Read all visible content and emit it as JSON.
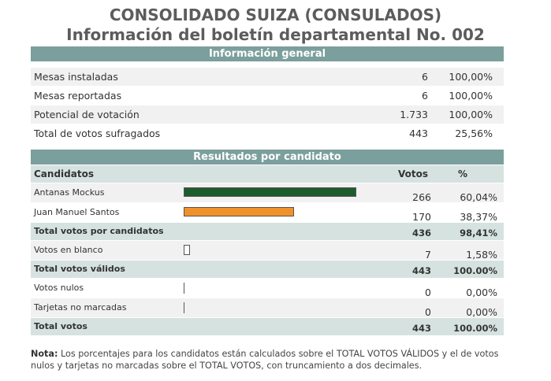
{
  "header": {
    "title_line1": "CONSOLIDADO SUIZA (CONSULADOS)",
    "title_line2": "Información del boletín departamental No. 002"
  },
  "general": {
    "section_title": "Información general",
    "rows": [
      {
        "label": "Mesas instaladas",
        "value": "6",
        "percent": "100,00%"
      },
      {
        "label": "Mesas reportadas",
        "value": "6",
        "percent": "100,00%"
      },
      {
        "label": "Potencial de votación",
        "value": "1.733",
        "percent": "100,00%"
      },
      {
        "label": "Total de votos sufragados",
        "value": "443",
        "percent": "25,56%"
      }
    ]
  },
  "results": {
    "section_title": "Resultados por candidato",
    "header": {
      "candidates": "Candidatos",
      "votes": "Votos",
      "percent": "%"
    },
    "candidates": [
      {
        "name": "Antanas Mockus",
        "votes": "266",
        "percent": "60,04%",
        "share": 60.04,
        "color": "#1d5c2d"
      },
      {
        "name": "Juan Manuel Santos",
        "votes": "170",
        "percent": "38,37%",
        "share": 38.37,
        "color": "#f0922b"
      }
    ],
    "total_candidates": {
      "label": "Total votos por candidatos",
      "votes": "436",
      "percent": "98,41%"
    },
    "blank": {
      "label": "Votos en blanco",
      "votes": "7",
      "percent": "1,58%"
    },
    "total_valid": {
      "label": "Total votos válidos",
      "votes": "443",
      "percent": "100.00%"
    },
    "null_votes": {
      "label": "Votos nulos",
      "votes": "0",
      "percent": "0,00%"
    },
    "unmarked": {
      "label": "Tarjetas no marcadas",
      "votes": "0",
      "percent": "0,00%"
    },
    "total": {
      "label": "Total votos",
      "votes": "443",
      "percent": "100.00%"
    }
  },
  "note": {
    "label": "Nota:",
    "text": " Los porcentajes para los candidatos están calculados sobre el TOTAL VOTOS VÁLIDOS y el de votos nulos y tarjetas no marcadas sobre el TOTAL VOTOS, con truncamiento a dos decimales."
  }
}
